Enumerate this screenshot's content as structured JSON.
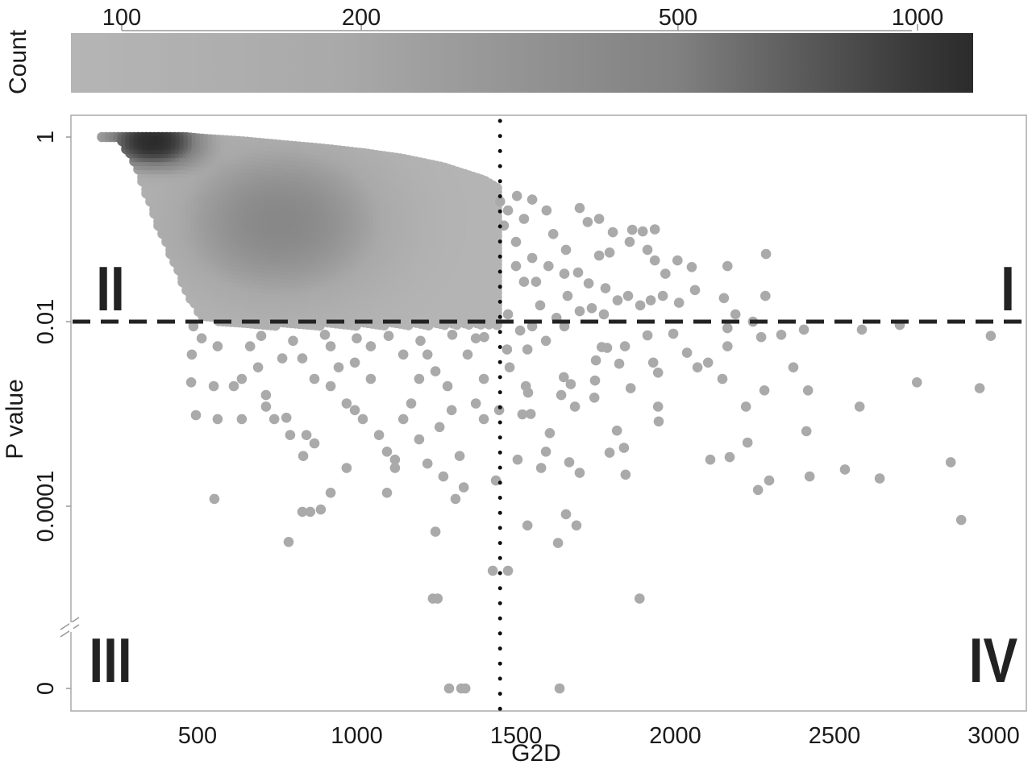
{
  "chart_data": {
    "type": "scatter",
    "title": "",
    "xlabel": "G2D",
    "ylabel": "P value",
    "xlim": [
      100,
      3100
    ],
    "x_ticks": [
      500,
      1000,
      1500,
      2000,
      2500,
      3000
    ],
    "x_tick_labels": [
      "500",
      "1000",
      "1500",
      "2000",
      "2500",
      "3000"
    ],
    "y_scale": "log with axis break to 0",
    "y_ticks": [
      1,
      0.01,
      0.0001,
      0
    ],
    "y_tick_labels": [
      "1",
      "0.01",
      "0.0001",
      "0"
    ],
    "grid": false,
    "colorbar": {
      "label": "Count",
      "scale": "log",
      "range": [
        86,
        1175
      ],
      "ticks": [
        100,
        200,
        500,
        1000
      ],
      "tick_labels": [
        "100",
        "200",
        "500",
        "1000"
      ],
      "colors": {
        "low": "#b5b5b5",
        "mid": "#818181",
        "high": "#2b2b2b"
      },
      "placement": "top"
    },
    "reference_lines": {
      "horizontal_dashed_p": 0.01,
      "vertical_dotted_g2d": 1450
    },
    "quadrant_labels": {
      "I": "I",
      "II": "II",
      "III": "III",
      "IV": "IV"
    },
    "point_color_sparse": "#aaaaaa",
    "dense_region": {
      "envelope": [
        {
          "g2d": 200,
          "p_upper": 1,
          "p_lower": 0.98
        },
        {
          "g2d": 260,
          "p_upper": 1,
          "p_lower": 0.9
        },
        {
          "g2d": 310,
          "p_upper": 1,
          "p_lower": 0.45
        },
        {
          "g2d": 386,
          "p_upper": 1,
          "p_lower": 0.09
        },
        {
          "g2d": 462,
          "p_upper": 1,
          "p_lower": 0.022
        },
        {
          "g2d": 513,
          "p_upper": 0.96,
          "p_lower": 0.011
        },
        {
          "g2d": 639,
          "p_upper": 0.9,
          "p_lower": 0.009
        },
        {
          "g2d": 766,
          "p_upper": 0.82,
          "p_lower": 0.009
        },
        {
          "g2d": 892,
          "p_upper": 0.75,
          "p_lower": 0.009
        },
        {
          "g2d": 1019,
          "p_upper": 0.67,
          "p_lower": 0.009
        },
        {
          "g2d": 1146,
          "p_upper": 0.58,
          "p_lower": 0.009
        },
        {
          "g2d": 1272,
          "p_upper": 0.47,
          "p_lower": 0.009
        },
        {
          "g2d": 1399,
          "p_upper": 0.34,
          "p_lower": 0.009
        },
        {
          "g2d": 1449,
          "p_upper": 0.27,
          "p_lower": 0.009
        }
      ],
      "density_peaks": [
        {
          "g2d": 360,
          "p": 0.9,
          "count": 1150
        },
        {
          "g2d": 760,
          "p": 0.12,
          "count": 420
        }
      ],
      "background_count": 90
    },
    "points": [
      [
        2285,
        0.054
      ],
      [
        2164,
        0.04
      ],
      [
        2052,
        0.039
      ],
      [
        2062,
        0.022
      ],
      [
        2283,
        0.019
      ],
      [
        2153,
        0.018
      ],
      [
        2189,
        0.012
      ],
      [
        2012,
        0.016
      ],
      [
        2007,
        0.046
      ],
      [
        1936,
        0.1
      ],
      [
        1898,
        0.095
      ],
      [
        1865,
        0.099
      ],
      [
        1761,
        0.13
      ],
      [
        1700,
        0.17
      ],
      [
        1725,
        0.12
      ],
      [
        1804,
        0.093
      ],
      [
        1857,
        0.073
      ],
      [
        1794,
        0.056
      ],
      [
        1761,
        0.052
      ],
      [
        1913,
        0.06
      ],
      [
        1936,
        0.046
      ],
      [
        1969,
        0.033
      ],
      [
        1961,
        0.019
      ],
      [
        1923,
        0.017
      ],
      [
        1890,
        0.015
      ],
      [
        1819,
        0.017
      ],
      [
        1852,
        0.019
      ],
      [
        1781,
        0.023
      ],
      [
        1728,
        0.026
      ],
      [
        1700,
        0.013
      ],
      [
        1738,
        0.014
      ],
      [
        1776,
        0.012
      ],
      [
        1662,
        0.019
      ],
      [
        1695,
        0.034
      ],
      [
        1657,
        0.06
      ],
      [
        1617,
        0.089
      ],
      [
        1596,
        0.16
      ],
      [
        1551,
        0.21
      ],
      [
        1503,
        0.23
      ],
      [
        2244,
        0.01
      ],
      [
        2705,
        0.0092
      ],
      [
        2164,
        0.0085
      ],
      [
        2991,
        0.007
      ],
      [
        1475,
        0.16
      ],
      [
        1525,
        0.13
      ],
      [
        1500,
        0.073
      ],
      [
        1551,
        0.049
      ],
      [
        1602,
        0.04
      ],
      [
        1525,
        0.027
      ],
      [
        1576,
        0.015
      ],
      [
        1627,
        0.011
      ],
      [
        1475,
        0.012
      ],
      [
        1513,
        0.008
      ],
      [
        1551,
        0.0089
      ],
      [
        1652,
        0.0089
      ],
      [
        1500,
        0.04
      ],
      [
        1563,
        0.027
      ],
      [
        1652,
        0.033
      ],
      [
        1450,
        0.2
      ],
      [
        1462,
        0.11
      ],
      [
        1505,
        0.00032
      ],
      [
        1606,
        0.00062
      ],
      [
        1594,
        0.00039
      ],
      [
        1579,
        0.00026
      ],
      [
        1667,
        0.0003
      ],
      [
        1700,
        0.00023
      ],
      [
        1817,
        0.00066
      ],
      [
        1794,
        0.00038
      ],
      [
        1839,
        0.00043
      ],
      [
        1844,
        0.00022
      ],
      [
        2110,
        0.00032
      ],
      [
        2171,
        0.00034
      ],
      [
        2227,
        0.00049
      ],
      [
        2222,
        0.0012
      ],
      [
        2260,
        0.00015
      ],
      [
        2295,
        0.00019
      ],
      [
        2412,
        0.00065
      ],
      [
        2422,
        0.00021
      ],
      [
        2533,
        0.00025
      ],
      [
        2642,
        0.0002
      ],
      [
        2865,
        0.0003
      ],
      [
        2898,
        7.1e-05
      ],
      [
        1657,
        8.2e-05
      ],
      [
        1536,
        6.2e-05
      ],
      [
        1690,
        6.2e-05
      ],
      [
        1632,
        4e-05
      ],
      [
        1427,
        2e-05
      ],
      [
        1475,
        2e-05
      ],
      [
        1888,
        1e-05
      ],
      [
        2759,
        0.0022
      ],
      [
        2956,
        0.0019
      ],
      [
        2579,
        0.0012
      ],
      [
        2417,
        0.0018
      ],
      [
        2280,
        0.0018
      ],
      [
        2371,
        0.0032
      ],
      [
        2148,
        0.0024
      ],
      [
        2103,
        0.0036
      ],
      [
        2070,
        0.0032
      ],
      [
        2037,
        0.0046
      ],
      [
        2164,
        0.0054
      ],
      [
        2270,
        0.0068
      ],
      [
        2333,
        0.0072
      ],
      [
        2586,
        0.0082
      ],
      [
        2404,
        0.0082
      ],
      [
        1946,
        0.0012
      ],
      [
        1948,
        0.00083
      ],
      [
        1860,
        0.0019
      ],
      [
        1946,
        0.0028
      ],
      [
        1931,
        0.0036
      ],
      [
        1824,
        0.0035
      ],
      [
        1746,
        0.0015
      ],
      [
        1748,
        0.0023
      ],
      [
        1751,
        0.0038
      ],
      [
        1685,
        0.0012
      ],
      [
        1650,
        0.0025
      ],
      [
        1672,
        0.0021
      ],
      [
        1642,
        0.0016
      ],
      [
        1538,
        0.0017
      ],
      [
        1531,
        0.002
      ],
      [
        1520,
        0.00099
      ],
      [
        1546,
        0.001
      ],
      [
        1536,
        0.005
      ],
      [
        1594,
        0.0062
      ],
      [
        1769,
        0.0053
      ],
      [
        1786,
        0.0052
      ],
      [
        1842,
        0.0054
      ],
      [
        1913,
        0.0071
      ],
      [
        1994,
        0.0074
      ],
      [
        1472,
        0.005
      ],
      [
        1480,
        0.0032
      ],
      [
        1437,
        0.00019
      ],
      [
        1447,
        0.0011
      ],
      [
        482,
        0.0044
      ],
      [
        480,
        0.0022
      ],
      [
        495,
        0.00097
      ],
      [
        551,
        0.002
      ],
      [
        563,
        0.00088
      ],
      [
        614,
        0.002
      ],
      [
        639,
        0.00088
      ],
      [
        715,
        0.0016
      ],
      [
        715,
        0.0012
      ],
      [
        741,
        0.00088
      ],
      [
        779,
        0.00091
      ],
      [
        791,
        0.00059
      ],
      [
        842,
        0.00059
      ],
      [
        867,
        0.00048
      ],
      [
        832,
        0.00035
      ],
      [
        918,
        0.00014
      ],
      [
        829,
        8.7e-05
      ],
      [
        854,
        8.7e-05
      ],
      [
        887,
        9.2e-05
      ],
      [
        786,
        4.1e-05
      ],
      [
        553,
        0.00012
      ],
      [
        639,
        0.0024
      ],
      [
        690,
        0.0032
      ],
      [
        766,
        0.004
      ],
      [
        829,
        0.004
      ],
      [
        867,
        0.0024
      ],
      [
        918,
        0.002
      ],
      [
        943,
        0.0032
      ],
      [
        994,
        0.0036
      ],
      [
        1044,
        0.0024
      ],
      [
        968,
        0.0013
      ],
      [
        1019,
        0.00088
      ],
      [
        1070,
        0.00059
      ],
      [
        1095,
        0.00039
      ],
      [
        1120,
        0.00026
      ],
      [
        1146,
        0.00088
      ],
      [
        1171,
        0.0013
      ],
      [
        1196,
        0.0024
      ],
      [
        1222,
        0.0044
      ],
      [
        1247,
        0.0029
      ],
      [
        1285,
        0.002
      ],
      [
        1298,
        0.0011
      ],
      [
        1260,
        0.00072
      ],
      [
        1196,
        0.00053
      ],
      [
        1222,
        0.00029
      ],
      [
        1272,
        0.00021
      ],
      [
        1323,
        0.00035
      ],
      [
        1310,
        0.00012
      ],
      [
        1336,
        0.00016
      ],
      [
        1399,
        0.00088
      ],
      [
        1374,
        0.0013
      ],
      [
        1399,
        0.0024
      ],
      [
        1348,
        0.0044
      ],
      [
        1374,
        0.0066
      ],
      [
        968,
        0.00026
      ],
      [
        1120,
        0.00032
      ],
      [
        1247,
        5.3e-05
      ],
      [
        1095,
        0.00014
      ],
      [
        994,
        0.0011
      ],
      [
        1044,
        0.0054
      ],
      [
        1146,
        0.0044
      ],
      [
        918,
        0.0054
      ],
      [
        665,
        0.0054
      ],
      [
        563,
        0.0054
      ],
      [
        513,
        0.0066
      ],
      [
        487,
        0.0089
      ],
      [
        1239,
        1e-05
      ],
      [
        1254,
        1e-05
      ],
      [
        700,
        0.007
      ],
      [
        900,
        0.0072
      ],
      [
        1100,
        0.007
      ],
      [
        1300,
        0.0072
      ],
      [
        1400,
        0.0068
      ],
      [
        800,
        0.0062
      ],
      [
        1000,
        0.0066
      ],
      [
        1200,
        0.0062
      ],
      [
        1290,
        0
      ],
      [
        1328,
        0
      ],
      [
        1341,
        0
      ],
      [
        1637,
        0
      ]
    ]
  }
}
